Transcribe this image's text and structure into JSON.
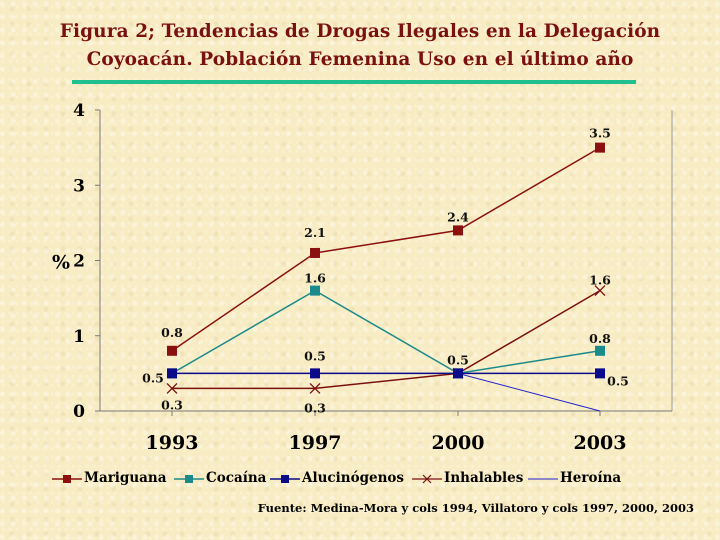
{
  "chart_data": {
    "type": "line",
    "title": "Figura 2; Tendencias de Drogas Ilegales en  la Delegación Coyoacán. Población Femenina Uso en el último año",
    "title_lines": [
      "Figura 2; Tendencias de Drogas Ilegales en  la Delegación",
      "Coyoacán. Población Femenina Uso en el último año"
    ],
    "xlabel": "",
    "ylabel": "%",
    "categories": [
      "1993",
      "1997",
      "2000",
      "2003"
    ],
    "ylim": [
      0,
      4
    ],
    "yticks": [
      "0",
      "1",
      "2",
      "3",
      "4"
    ],
    "grid": false,
    "legend_position": "bottom",
    "series": [
      {
        "name": "Mariguana",
        "values": [
          0.8,
          2.1,
          2.4,
          3.5
        ],
        "color": "#8b1010",
        "marker": "square",
        "labels": [
          "0.8",
          "2.1",
          "2.4",
          "3.5"
        ]
      },
      {
        "name": "Cocaína",
        "values": [
          0.5,
          1.6,
          0.5,
          0.8
        ],
        "color": "#1a8a8a",
        "marker": "square",
        "labels": [
          "",
          "1.6",
          "",
          "0.8"
        ]
      },
      {
        "name": "Alucinógenos",
        "values": [
          0.5,
          0.5,
          0.5,
          0.5
        ],
        "color": "#0a0a8a",
        "marker": "square",
        "labels": [
          "0.5",
          "0.5",
          "0.5",
          "0.5"
        ]
      },
      {
        "name": "Inhalables",
        "values": [
          0.3,
          0.3,
          0.5,
          1.6
        ],
        "color": "#7a1010",
        "marker": "x",
        "labels": [
          "0.3",
          "0.3",
          "",
          "1.6"
        ]
      },
      {
        "name": "Heroína",
        "values": [
          0.5,
          0.5,
          0.5,
          0.0
        ],
        "color": "#2222cc",
        "marker": "none",
        "labels": [
          "",
          "",
          "",
          ""
        ]
      }
    ],
    "source": "Fuente: Medina-Mora y cols 1994, Villatoro y cols 1997, 2000, 2003"
  }
}
